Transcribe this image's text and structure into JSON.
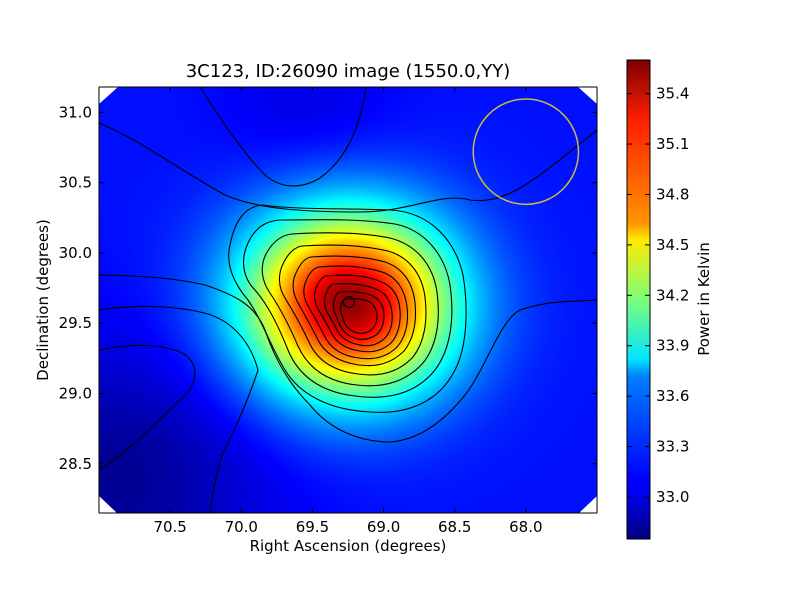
{
  "chart_data": {
    "type": "heatmap",
    "title": "3C123, ID:26090 image (1550.0,YY)",
    "xlabel": "Right Ascension (degrees)",
    "ylabel": "Declination (degrees)",
    "xlim": [
      71.0,
      67.5
    ],
    "ylim": [
      28.15,
      31.18
    ],
    "xticks": [
      "70.5",
      "70.0",
      "69.5",
      "69.0",
      "68.5",
      "68.0"
    ],
    "xtick_values": [
      70.5,
      70.0,
      69.5,
      69.0,
      68.5,
      68.0
    ],
    "yticks": [
      "28.5",
      "29.0",
      "29.5",
      "30.0",
      "30.5",
      "31.0"
    ],
    "ytick_values": [
      28.5,
      29.0,
      29.5,
      30.0,
      30.5,
      31.0
    ],
    "colormap": "jet",
    "colorbar": {
      "label": "Power in Kelvin",
      "range": [
        32.75,
        35.6
      ],
      "ticks": [
        "33.0",
        "33.3",
        "33.6",
        "33.9",
        "34.2",
        "34.5",
        "34.8",
        "35.1",
        "35.4"
      ],
      "tick_values": [
        33.0,
        33.3,
        33.6,
        33.9,
        34.2,
        34.5,
        34.8,
        35.1,
        35.4
      ]
    },
    "field": {
      "base": 33.15,
      "peak": {
        "ra": 69.25,
        "dec": 29.64,
        "value": 35.55
      },
      "background_trend": "darker toward lower-left (~32.8), brighter toward center-right (~33.3)"
    },
    "contour_levels": [
      33.1,
      33.3,
      33.55,
      33.8,
      34.0,
      34.2,
      34.4,
      34.6,
      34.8,
      35.0,
      35.2,
      35.4
    ],
    "beam_circle": {
      "ra": 68.0,
      "dec": 30.72,
      "radius_deg": 0.37,
      "color": "#c9b84a"
    }
  }
}
